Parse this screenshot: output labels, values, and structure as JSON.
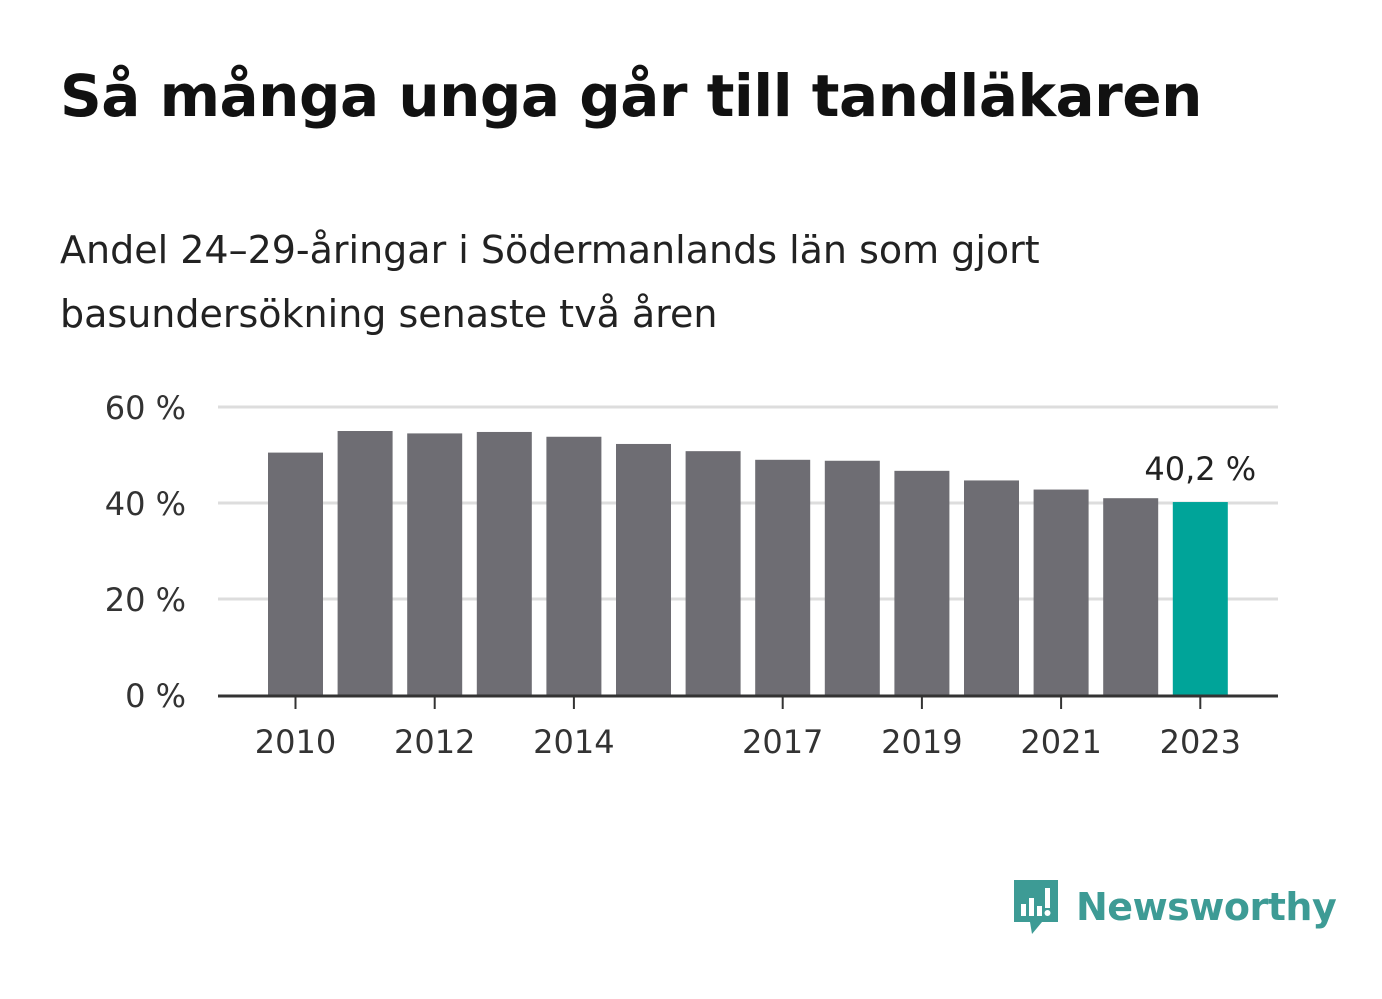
{
  "header": {
    "title": "Så många unga går till tandläkaren",
    "subtitle": "Andel 24–29-åringar i Södermanlands län som gjort basundersökning senaste två åren"
  },
  "chart_data": {
    "type": "bar",
    "categories": [
      "2010",
      "2011",
      "2012",
      "2013",
      "2014",
      "2015",
      "2016",
      "2017",
      "2018",
      "2019",
      "2020",
      "2021",
      "2022",
      "2023"
    ],
    "values": [
      50.5,
      55.0,
      54.5,
      54.8,
      53.8,
      52.3,
      50.8,
      49.0,
      48.8,
      46.7,
      44.7,
      42.8,
      41.0,
      40.2
    ],
    "x_tick_labels": [
      "2010",
      "2012",
      "2014",
      "2017",
      "2019",
      "2021",
      "2023"
    ],
    "y_ticks": [
      {
        "value": 0,
        "label": "0 %"
      },
      {
        "value": 20,
        "label": "20 %"
      },
      {
        "value": 40,
        "label": "40 %"
      },
      {
        "value": 60,
        "label": "60 %"
      }
    ],
    "ylim": [
      0,
      60
    ],
    "grid": true,
    "highlight": {
      "category": "2023",
      "label": "40,2 %"
    },
    "colors": {
      "bar": "#6e6d73",
      "highlight": "#00a499",
      "grid": "#dddddd",
      "axis": "#333333"
    }
  },
  "branding": {
    "name": "Newsworthy",
    "color": "#3d9b95"
  }
}
